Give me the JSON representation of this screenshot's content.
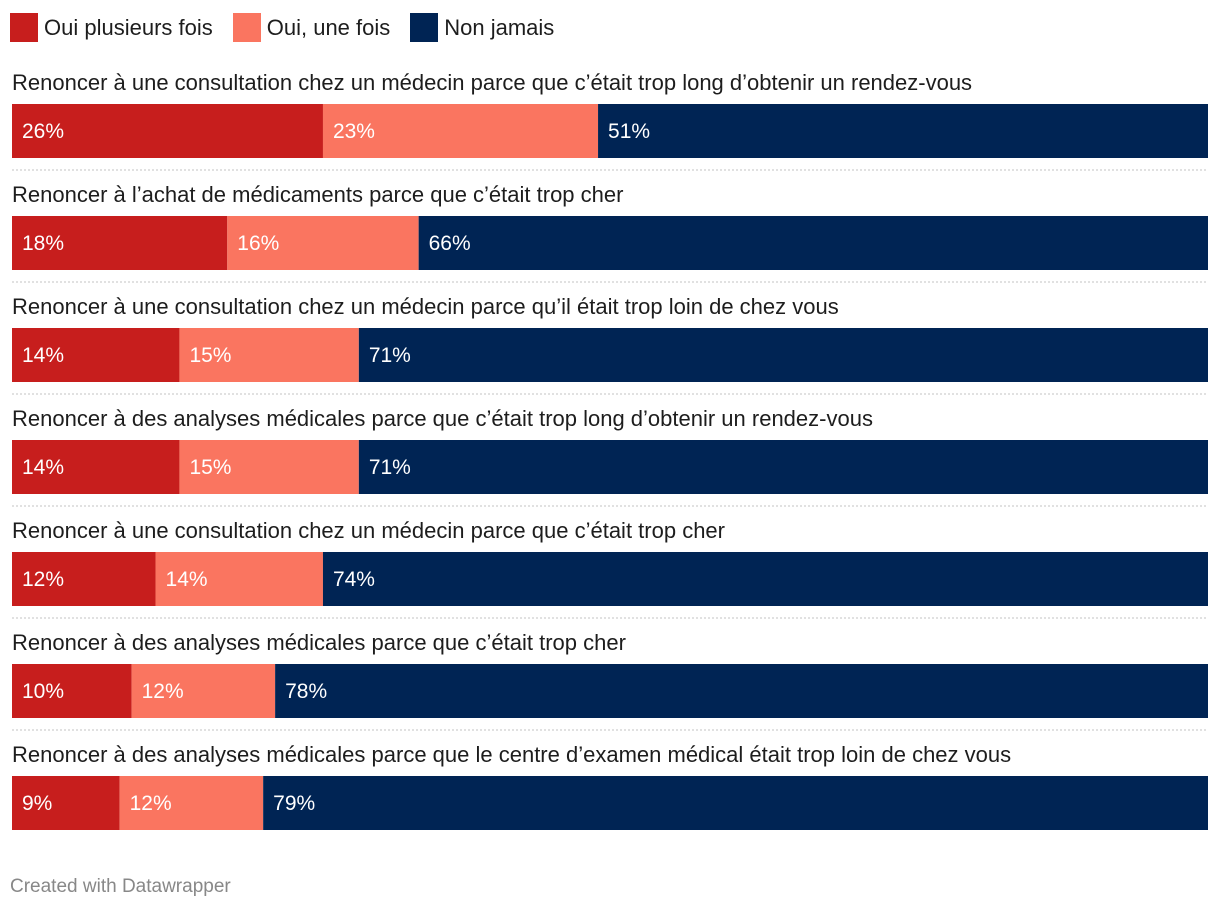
{
  "chart_data": {
    "type": "bar",
    "orientation": "horizontal",
    "stacked": true,
    "title": "",
    "categories": [
      "Renoncer à une consultation chez un médecin parce que c’était trop long d’obtenir un rendez-vous",
      "Renoncer à l’achat de médicaments parce que c’était trop cher",
      "Renoncer à une consultation chez un médecin parce qu’il était trop loin de chez vous",
      "Renoncer à des analyses médicales parce que c’était trop long d’obtenir un rendez-vous",
      "Renoncer à une consultation chez un médecin parce que c’était trop cher",
      "Renoncer à des analyses médicales parce que c’était trop cher",
      "Renoncer à des analyses médicales parce que le centre d’examen médical était trop loin de chez vous"
    ],
    "series": [
      {
        "name": "Oui plusieurs fois",
        "color": "#c71e1d",
        "values": [
          26,
          18,
          14,
          14,
          12,
          10,
          9
        ]
      },
      {
        "name": "Oui, une fois",
        "color": "#fa7560",
        "values": [
          23,
          16,
          15,
          15,
          14,
          12,
          12
        ]
      },
      {
        "name": "Non jamais",
        "color": "#002454",
        "values": [
          51,
          66,
          71,
          71,
          74,
          78,
          79
        ]
      }
    ],
    "value_suffix": "%",
    "xlim": [
      0,
      100
    ],
    "legend_position": "top-left"
  },
  "footer": {
    "credit": "Created with Datawrapper"
  }
}
